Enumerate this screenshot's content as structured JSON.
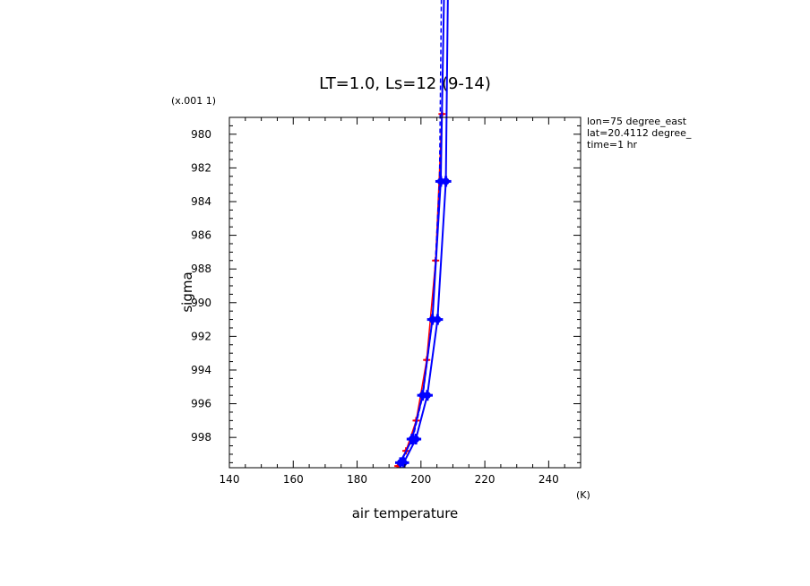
{
  "chart_data": {
    "type": "line",
    "title": "LT=1.0, Ls=12 (9-14)",
    "xlabel": "air temperature",
    "ylabel": "sigma",
    "x_unit": "(K)",
    "y_unit": "(x.001 1)",
    "xlim": [
      140,
      250
    ],
    "ylim": [
      979,
      999.8
    ],
    "y_reversed": true,
    "x_ticks": [
      140,
      160,
      180,
      200,
      220,
      240
    ],
    "y_ticks": [
      980,
      982,
      984,
      986,
      988,
      990,
      992,
      994,
      996,
      998
    ],
    "grid": false,
    "legend": "none",
    "info_lines": [
      "lon=75 degree_east",
      "lat=20.4112 degree_",
      "time=1 hr"
    ],
    "series": [
      {
        "color": "#ff0000",
        "style": "solid",
        "marker": "small",
        "points": [
          {
            "x": 192.8,
            "y": 999.7
          },
          {
            "x": 195.3,
            "y": 998.8
          },
          {
            "x": 198.5,
            "y": 997.0
          },
          {
            "x": 201.8,
            "y": 993.4
          },
          {
            "x": 204.6,
            "y": 987.5
          },
          {
            "x": 206.6,
            "y": 978.8
          }
        ]
      },
      {
        "color": "#0000ff",
        "style": "solid",
        "marker": "large",
        "points": [
          {
            "x": 193.6,
            "y": 999.5
          },
          {
            "x": 197.2,
            "y": 998.1
          },
          {
            "x": 200.5,
            "y": 995.5
          },
          {
            "x": 203.6,
            "y": 991.0
          },
          {
            "x": 206.2,
            "y": 982.8
          },
          {
            "x": 207.2,
            "y": 972.0
          }
        ]
      },
      {
        "color": "#0000ff",
        "style": "solid",
        "marker": "large",
        "points": [
          {
            "x": 194.6,
            "y": 999.5
          },
          {
            "x": 198.4,
            "y": 998.1
          },
          {
            "x": 202.0,
            "y": 995.5
          },
          {
            "x": 205.2,
            "y": 991.0
          },
          {
            "x": 207.8,
            "y": 982.8
          },
          {
            "x": 208.4,
            "y": 972.0
          }
        ]
      },
      {
        "color": "#0000ff",
        "style": "dashed",
        "marker": "none",
        "points": [
          {
            "x": 193.0,
            "y": 999.6
          },
          {
            "x": 197.4,
            "y": 998.1
          },
          {
            "x": 200.6,
            "y": 995.5
          },
          {
            "x": 203.6,
            "y": 991.0
          },
          {
            "x": 205.8,
            "y": 982.8
          },
          {
            "x": 206.4,
            "y": 972.0
          }
        ]
      }
    ]
  }
}
